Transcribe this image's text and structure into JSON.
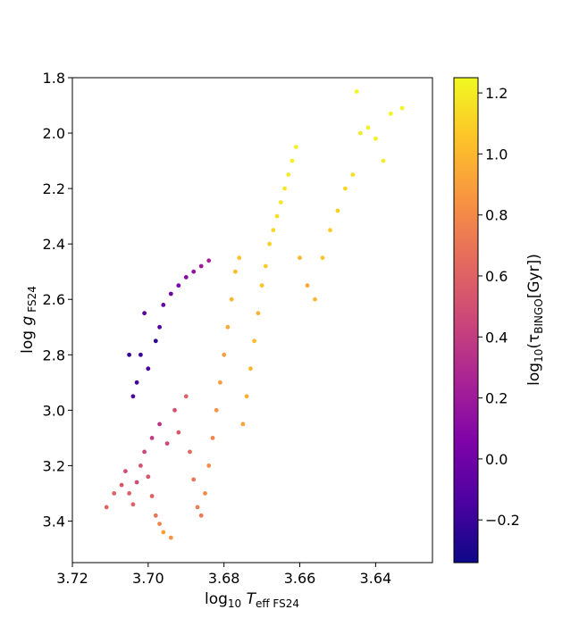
{
  "chart_data": {
    "type": "scatter",
    "title": "",
    "xlabel": {
      "base": "log",
      "sub": "10",
      "var": "T",
      "varsub": "eff FS24"
    },
    "ylabel": {
      "base": "log ",
      "var": "g",
      "varsub": "FS24"
    },
    "colorbar_label": {
      "pre": "log",
      "sub1": "10",
      "mid": "(τ",
      "sub2": "BINGO",
      "post": "[Gyr])"
    },
    "x_axis": {
      "inverted": true,
      "xlim": [
        3.72,
        3.625
      ],
      "ticks": [
        3.72,
        3.7,
        3.68,
        3.66,
        3.64
      ]
    },
    "y_axis": {
      "inverted": true,
      "ylim": [
        1.8,
        3.55
      ],
      "ticks": [
        1.8,
        2.0,
        2.2,
        2.4,
        2.6,
        2.8,
        3.0,
        3.2,
        3.4
      ]
    },
    "colorbar": {
      "colormap": "plasma",
      "range": [
        -0.34,
        1.25
      ],
      "ticks": [
        -0.2,
        0.0,
        0.2,
        0.4,
        0.6,
        0.8,
        1.0,
        1.2
      ]
    },
    "grid": false,
    "series": [
      {
        "points": [
          [
            3.711,
            3.35,
            0.62
          ],
          [
            3.709,
            3.3,
            0.6
          ],
          [
            3.707,
            3.27,
            0.55
          ],
          [
            3.706,
            3.22,
            0.5
          ],
          [
            3.705,
            3.3,
            0.58
          ],
          [
            3.704,
            3.34,
            0.6
          ],
          [
            3.703,
            3.26,
            0.48
          ],
          [
            3.702,
            3.2,
            0.52
          ],
          [
            3.701,
            3.15,
            0.45
          ],
          [
            3.7,
            3.24,
            0.55
          ],
          [
            3.699,
            3.31,
            0.6
          ],
          [
            3.698,
            3.38,
            0.7
          ],
          [
            3.697,
            3.41,
            0.78
          ],
          [
            3.696,
            3.44,
            0.9
          ],
          [
            3.694,
            3.46,
            0.85
          ],
          [
            3.699,
            3.1,
            0.4
          ],
          [
            3.697,
            3.05,
            0.35
          ],
          [
            3.695,
            3.12,
            0.45
          ],
          [
            3.693,
            3.0,
            0.5
          ],
          [
            3.692,
            3.08,
            0.55
          ],
          [
            3.69,
            2.95,
            0.6
          ],
          [
            3.689,
            3.15,
            0.65
          ],
          [
            3.688,
            3.25,
            0.7
          ],
          [
            3.687,
            3.35,
            0.75
          ],
          [
            3.686,
            3.38,
            0.72
          ],
          [
            3.685,
            3.3,
            0.8
          ],
          [
            3.684,
            3.2,
            0.82
          ],
          [
            3.683,
            3.1,
            0.78
          ],
          [
            3.682,
            3.0,
            0.85
          ],
          [
            3.681,
            2.9,
            0.88
          ],
          [
            3.68,
            2.8,
            0.9
          ],
          [
            3.679,
            2.7,
            0.95
          ],
          [
            3.678,
            2.6,
            1.0
          ],
          [
            3.677,
            2.5,
            1.02
          ],
          [
            3.676,
            2.45,
            1.05
          ],
          [
            3.675,
            3.05,
            0.92
          ],
          [
            3.674,
            2.95,
            0.98
          ],
          [
            3.673,
            2.85,
            1.0
          ],
          [
            3.672,
            2.75,
            1.02
          ],
          [
            3.671,
            2.65,
            0.98
          ],
          [
            3.67,
            2.55,
            1.05
          ],
          [
            3.669,
            2.48,
            1.08
          ],
          [
            3.668,
            2.4,
            1.1
          ],
          [
            3.667,
            2.35,
            1.12
          ],
          [
            3.666,
            2.3,
            1.15
          ],
          [
            3.665,
            2.25,
            1.18
          ],
          [
            3.664,
            2.2,
            1.18
          ],
          [
            3.663,
            2.15,
            1.2
          ],
          [
            3.662,
            2.1,
            1.22
          ],
          [
            3.661,
            2.05,
            1.22
          ],
          [
            3.66,
            2.45,
            1.0
          ],
          [
            3.658,
            2.55,
            0.95
          ],
          [
            3.656,
            2.6,
            1.0
          ],
          [
            3.654,
            2.45,
            1.05
          ],
          [
            3.652,
            2.35,
            1.08
          ],
          [
            3.65,
            2.28,
            1.1
          ],
          [
            3.648,
            2.2,
            1.12
          ],
          [
            3.646,
            2.15,
            1.15
          ],
          [
            3.644,
            2.0,
            1.2
          ],
          [
            3.642,
            1.98,
            1.22
          ],
          [
            3.645,
            1.85,
            1.25
          ],
          [
            3.64,
            2.02,
            1.22
          ],
          [
            3.638,
            2.1,
            1.2
          ],
          [
            3.636,
            1.93,
            1.24
          ],
          [
            3.633,
            1.91,
            1.24
          ],
          [
            3.702,
            2.8,
            -0.2
          ],
          [
            3.7,
            2.85,
            -0.15
          ],
          [
            3.698,
            2.75,
            -0.25
          ],
          [
            3.697,
            2.7,
            -0.1
          ],
          [
            3.696,
            2.62,
            -0.05
          ],
          [
            3.694,
            2.58,
            0.0
          ],
          [
            3.692,
            2.55,
            0.05
          ],
          [
            3.69,
            2.52,
            0.1
          ],
          [
            3.688,
            2.5,
            0.15
          ],
          [
            3.686,
            2.48,
            0.2
          ],
          [
            3.684,
            2.46,
            0.25
          ],
          [
            3.703,
            2.9,
            -0.18
          ],
          [
            3.704,
            2.95,
            -0.12
          ],
          [
            3.705,
            2.8,
            -0.22
          ],
          [
            3.701,
            2.65,
            -0.08
          ]
        ]
      }
    ]
  }
}
